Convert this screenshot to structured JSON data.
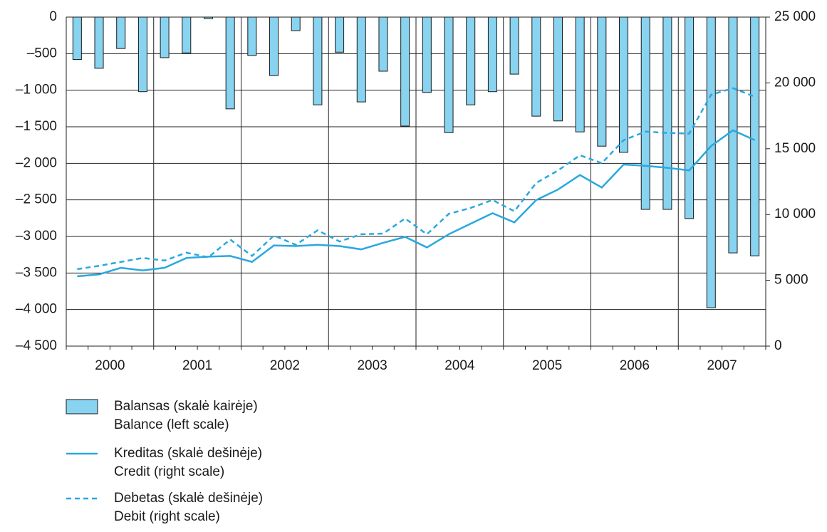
{
  "chart_data": {
    "type": "bar_line",
    "year_labels": [
      "2000",
      "2001",
      "2002",
      "2003",
      "2004",
      "2005",
      "2006",
      "2007"
    ],
    "quarters_per_year": 4,
    "ylim": [
      -4500,
      0
    ],
    "yticks": [
      {
        "value": -4500,
        "label": "–4 500"
      },
      {
        "value": -4000,
        "label": "–4 000"
      },
      {
        "value": -3500,
        "label": "–3 500"
      },
      {
        "value": -3000,
        "label": "–3 000"
      },
      {
        "value": -2500,
        "label": "–2 500"
      },
      {
        "value": -2000,
        "label": "–2 000"
      },
      {
        "value": -1500,
        "label": "–1 500"
      },
      {
        "value": -1000,
        "label": "–1 000"
      },
      {
        "value": -500,
        "label": "–500"
      },
      0
    ],
    "y2lim": [
      0,
      25000
    ],
    "y2ticks": [
      0,
      {
        "value": 5000,
        "label": "5 000"
      },
      {
        "value": 10000,
        "label": "10 000"
      },
      {
        "value": 15000,
        "label": "15 000"
      },
      {
        "value": 20000,
        "label": "20 000"
      },
      {
        "value": 25000,
        "label": "25 000"
      }
    ],
    "grid": true,
    "series": [
      {
        "name": "Balansas (skalė kairėje)",
        "name_en": "Balance (left scale)",
        "kind": "bar",
        "color": "#87d3f0",
        "values": [
          -580,
          -700,
          -430,
          -1020,
          -555,
          -490,
          -20,
          -1255,
          -525,
          -800,
          -185,
          -1200,
          -480,
          -1160,
          -740,
          -1490,
          -1030,
          -1580,
          -1200,
          -1020,
          -780,
          -1355,
          -1420,
          -1570,
          -1765,
          -1850,
          -2630,
          -2630,
          -2755,
          -3975,
          -3225,
          -3265
        ]
      },
      {
        "name": "Kreditas (skalė dešinėje)",
        "name_en": "Credit (right scale)",
        "kind": "line",
        "axis": "y2",
        "color": "#29a8e0",
        "dashed": false,
        "values": [
          5300,
          5450,
          5950,
          5750,
          5950,
          6700,
          6800,
          6850,
          6400,
          7650,
          7600,
          7700,
          7600,
          7350,
          7850,
          8300,
          7500,
          8500,
          9300,
          10100,
          9400,
          11100,
          11900,
          13000,
          12050,
          13800,
          13700,
          13550,
          13350,
          15200,
          16400,
          15650
        ]
      },
      {
        "name": "Debetas (skalė dešinėje)",
        "name_en": "Debit (right scale)",
        "kind": "line",
        "axis": "y2",
        "color": "#29a8e0",
        "dashed": true,
        "values": [
          5850,
          6100,
          6400,
          6700,
          6500,
          7100,
          6750,
          8100,
          6850,
          8400,
          7700,
          8800,
          7950,
          8500,
          8550,
          9700,
          8500,
          10050,
          10500,
          11100,
          10250,
          12400,
          13350,
          14500,
          13900,
          15650,
          16300,
          16200,
          16150,
          19100,
          19600,
          18950
        ]
      }
    ]
  }
}
